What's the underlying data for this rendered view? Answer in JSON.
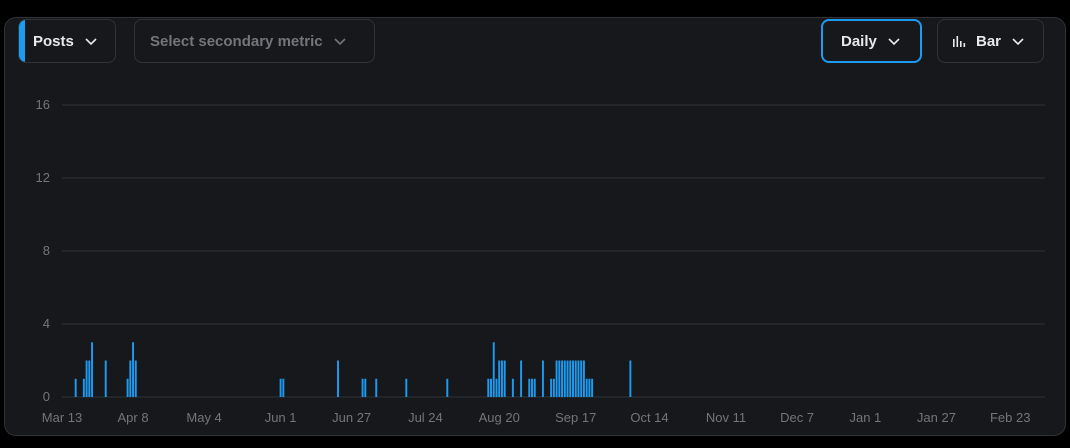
{
  "controls": {
    "primary_metric": "Posts",
    "secondary_metric_placeholder": "Select secondary metric",
    "interval": "Daily",
    "chart_type": "Bar"
  },
  "colors": {
    "accent": "#1d9bf0",
    "bar": "#1d9bf0",
    "grid": "#2f3336",
    "text_muted": "#71767b"
  },
  "icons": {
    "chevron": "chevron-down-icon",
    "bar_chart": "bar-chart-icon"
  },
  "chart_data": {
    "type": "bar",
    "title": "",
    "xlabel": "",
    "ylabel": "",
    "ylim": [
      0,
      16
    ],
    "y_ticks": [
      0,
      4,
      8,
      12,
      16
    ],
    "grid": true,
    "x_tick_labels": [
      "Mar 13",
      "Apr 8",
      "May 4",
      "Jun 1",
      "Jun 27",
      "Jul 24",
      "Aug 20",
      "Sep 17",
      "Oct 14",
      "Nov 11",
      "Dec 7",
      "Jan 1",
      "Jan 27",
      "Feb 23"
    ],
    "x_tick_indices": [
      0,
      26,
      52,
      80,
      106,
      133,
      160,
      188,
      215,
      243,
      269,
      294,
      320,
      347
    ],
    "day_count": 360,
    "series": [
      {
        "values": [
          0,
          0,
          0,
          0,
          0,
          1,
          0,
          0,
          1,
          2,
          2,
          3,
          0,
          0,
          0,
          0,
          2,
          0,
          0,
          0,
          0,
          0,
          0,
          0,
          1,
          2,
          3,
          2,
          0,
          0,
          0,
          0,
          0,
          0,
          0,
          0,
          0,
          0,
          0,
          0,
          0,
          0,
          0,
          0,
          0,
          0,
          0,
          0,
          0,
          0,
          0,
          0,
          0,
          0,
          0,
          0,
          0,
          0,
          0,
          0,
          0,
          0,
          0,
          0,
          0,
          0,
          0,
          0,
          0,
          0,
          0,
          0,
          0,
          0,
          0,
          0,
          0,
          0,
          0,
          0,
          1,
          1,
          0,
          0,
          0,
          0,
          0,
          0,
          0,
          0,
          0,
          0,
          0,
          0,
          0,
          0,
          0,
          0,
          0,
          0,
          0,
          2,
          0,
          0,
          0,
          0,
          0,
          0,
          0,
          0,
          1,
          1,
          0,
          0,
          0,
          1,
          0,
          0,
          0,
          0,
          0,
          0,
          0,
          0,
          0,
          0,
          1,
          0,
          0,
          0,
          0,
          0,
          0,
          0,
          0,
          0,
          0,
          0,
          0,
          0,
          0,
          1,
          0,
          0,
          0,
          0,
          0,
          0,
          0,
          0,
          0,
          0,
          0,
          0,
          0,
          0,
          1,
          1,
          3,
          1,
          2,
          2,
          2,
          0,
          0,
          1,
          0,
          0,
          2,
          0,
          0,
          1,
          1,
          1,
          0,
          0,
          2,
          0,
          0,
          1,
          1,
          2,
          2,
          2,
          2,
          2,
          2,
          2,
          2,
          2,
          2,
          2,
          1,
          1,
          1,
          0,
          0,
          0,
          0,
          0,
          0,
          0,
          0,
          0,
          0,
          0,
          0,
          0,
          2,
          0,
          0,
          0,
          0,
          0,
          0,
          0,
          0,
          0,
          0,
          0,
          0,
          0,
          0,
          0,
          0,
          0,
          0,
          0,
          0,
          0,
          0,
          0,
          0,
          0,
          0,
          0,
          0,
          0,
          0,
          0,
          0,
          0,
          0,
          0,
          0,
          0,
          0,
          0,
          0,
          0,
          0,
          0,
          0,
          0,
          0,
          0,
          0,
          0,
          0,
          0,
          0,
          0,
          0,
          0,
          0,
          0,
          0,
          0,
          0,
          0,
          0,
          0,
          0,
          0,
          0,
          0,
          0,
          0,
          0,
          0,
          0,
          0,
          0,
          0,
          0,
          0,
          0,
          0,
          0,
          0,
          0,
          0,
          0,
          0,
          0,
          0,
          0,
          0,
          0,
          0,
          0,
          0,
          0,
          0,
          0,
          0,
          0,
          0,
          0,
          0,
          0,
          0,
          0,
          0,
          0,
          0,
          0,
          0,
          0,
          0,
          0,
          0,
          0,
          0,
          0,
          0,
          0,
          0,
          0,
          0,
          0,
          0,
          0,
          0,
          0,
          0,
          0,
          0,
          0,
          0,
          0,
          0,
          0,
          0,
          0,
          0,
          0,
          0,
          0,
          0,
          0,
          0,
          0,
          0,
          0,
          0,
          0,
          0,
          0,
          0,
          0,
          0,
          0,
          0,
          0,
          0,
          0,
          0,
          0,
          0,
          0,
          0,
          0,
          0,
          0,
          0,
          0,
          0,
          0,
          0,
          0,
          0
        ]
      }
    ]
  }
}
